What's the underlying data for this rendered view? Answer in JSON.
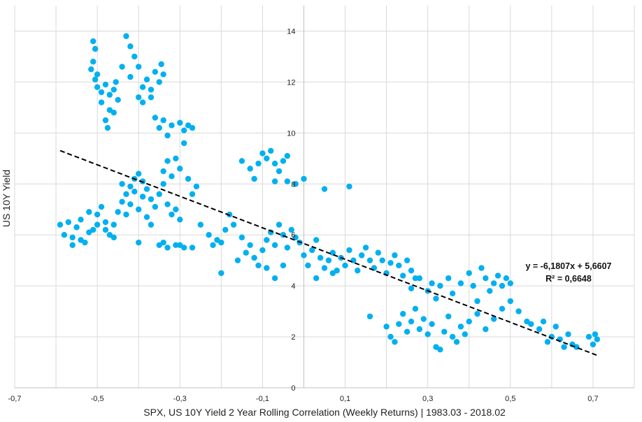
{
  "chart_data": {
    "type": "scatter",
    "title": "",
    "xlabel": "SPX, US 10Y Yield 2 Year Rolling Correlation (Weekly Returns) | 1983.03 - 2018.02",
    "ylabel": "US 10Y Yield",
    "xlim": [
      -0.7,
      0.8
    ],
    "ylim": [
      0,
      15
    ],
    "x_ticks": [
      -0.7,
      -0.5,
      -0.3,
      -0.1,
      0.1,
      0.3,
      0.5,
      0.7
    ],
    "x_tick_labels": [
      "-0,7",
      "-0,5",
      "-0,3",
      "-0,1",
      "0,1",
      "0,3",
      "0,5",
      "0,7"
    ],
    "y_ticks": [
      0,
      2,
      4,
      6,
      8,
      10,
      12,
      14
    ],
    "y_tick_labels": [
      "0",
      "2",
      "4",
      "6",
      "8",
      "10",
      "12",
      "14"
    ],
    "grid": true,
    "point_color": "#00b0f0",
    "trendline": {
      "slope": -6.1807,
      "intercept": 5.6607,
      "x_range": [
        -0.59,
        0.71
      ],
      "equation_label": "y = -6,1807x + 5,6607",
      "r2_label": "R² = 0,6648",
      "color": "#000000"
    },
    "points": [
      [
        -0.51,
        13.6
      ],
      [
        -0.505,
        13.3
      ],
      [
        -0.51,
        12.8
      ],
      [
        -0.515,
        12.5
      ],
      [
        -0.505,
        12.1
      ],
      [
        -0.5,
        11.8
      ],
      [
        -0.49,
        11.6
      ],
      [
        -0.48,
        11.9
      ],
      [
        -0.47,
        11.5
      ],
      [
        -0.46,
        11.7
      ],
      [
        -0.45,
        11.3
      ],
      [
        -0.47,
        10.9
      ],
      [
        -0.48,
        10.5
      ],
      [
        -0.475,
        10.2
      ],
      [
        -0.46,
        10.8
      ],
      [
        -0.5,
        12.3
      ],
      [
        -0.49,
        11.2
      ],
      [
        -0.455,
        12.0
      ],
      [
        -0.43,
        13.8
      ],
      [
        -0.42,
        13.4
      ],
      [
        -0.41,
        13.0
      ],
      [
        -0.44,
        12.6
      ],
      [
        -0.42,
        12.2
      ],
      [
        -0.4,
        11.4
      ],
      [
        -0.39,
        11.8
      ],
      [
        -0.38,
        12.1
      ],
      [
        -0.37,
        11.7
      ],
      [
        -0.36,
        12.4
      ],
      [
        -0.35,
        12.0
      ],
      [
        -0.345,
        12.7
      ],
      [
        -0.34,
        12.3
      ],
      [
        -0.39,
        11.2
      ],
      [
        -0.4,
        12.6
      ],
      [
        -0.37,
        11.4
      ],
      [
        -0.36,
        10.6
      ],
      [
        -0.35,
        10.2
      ],
      [
        -0.34,
        10.5
      ],
      [
        -0.33,
        9.9
      ],
      [
        -0.32,
        10.3
      ],
      [
        -0.3,
        10.4
      ],
      [
        -0.29,
        10.1
      ],
      [
        -0.28,
        10.3
      ],
      [
        -0.27,
        10.2
      ],
      [
        -0.29,
        9.6
      ],
      [
        -0.31,
        9.0
      ],
      [
        -0.3,
        8.6
      ],
      [
        -0.28,
        8.2
      ],
      [
        -0.26,
        7.9
      ],
      [
        -0.27,
        7.6
      ],
      [
        -0.33,
        8.9
      ],
      [
        -0.34,
        8.5
      ],
      [
        -0.32,
        8.3
      ],
      [
        -0.59,
        6.4
      ],
      [
        -0.58,
        6.0
      ],
      [
        -0.57,
        6.5
      ],
      [
        -0.56,
        5.9
      ],
      [
        -0.55,
        6.3
      ],
      [
        -0.54,
        6.6
      ],
      [
        -0.53,
        5.7
      ],
      [
        -0.52,
        6.9
      ],
      [
        -0.51,
        6.2
      ],
      [
        -0.5,
        6.8
      ],
      [
        -0.49,
        7.1
      ],
      [
        -0.48,
        6.5
      ],
      [
        -0.47,
        6.0
      ],
      [
        -0.46,
        6.4
      ],
      [
        -0.45,
        6.9
      ],
      [
        -0.44,
        7.3
      ],
      [
        -0.43,
        7.6
      ],
      [
        -0.42,
        7.9
      ],
      [
        -0.41,
        8.2
      ],
      [
        -0.4,
        8.4
      ],
      [
        -0.39,
        8.1
      ],
      [
        -0.38,
        7.8
      ],
      [
        -0.37,
        7.4
      ],
      [
        -0.36,
        7.1
      ],
      [
        -0.35,
        7.6
      ],
      [
        -0.34,
        8.0
      ],
      [
        -0.33,
        7.2
      ],
      [
        -0.32,
        6.8
      ],
      [
        -0.31,
        7.0
      ],
      [
        -0.3,
        6.6
      ],
      [
        -0.42,
        7.2
      ],
      [
        -0.4,
        7.0
      ],
      [
        -0.38,
        6.7
      ],
      [
        -0.44,
        8.0
      ],
      [
        -0.46,
        5.9
      ],
      [
        -0.48,
        6.2
      ],
      [
        -0.5,
        6.4
      ],
      [
        -0.52,
        6.1
      ],
      [
        -0.54,
        5.8
      ],
      [
        -0.56,
        5.6
      ],
      [
        -0.4,
        5.7
      ],
      [
        -0.37,
        6.4
      ],
      [
        -0.39,
        7.5
      ],
      [
        -0.41,
        7.7
      ],
      [
        -0.43,
        6.8
      ],
      [
        -0.35,
        5.6
      ],
      [
        -0.33,
        5.5
      ],
      [
        -0.31,
        5.6
      ],
      [
        -0.29,
        5.5
      ],
      [
        -0.27,
        5.5
      ],
      [
        -0.34,
        5.7
      ],
      [
        -0.3,
        5.6
      ],
      [
        -0.25,
        6.4
      ],
      [
        -0.23,
        6.0
      ],
      [
        -0.21,
        5.8
      ],
      [
        -0.2,
        5.7
      ],
      [
        -0.19,
        6.2
      ],
      [
        -0.18,
        6.8
      ],
      [
        -0.17,
        6.4
      ],
      [
        -0.15,
        5.9
      ],
      [
        -0.14,
        5.3
      ],
      [
        -0.13,
        5.6
      ],
      [
        -0.12,
        5.1
      ],
      [
        -0.11,
        4.8
      ],
      [
        -0.1,
        5.4
      ],
      [
        -0.09,
        5.8
      ],
      [
        -0.08,
        6.1
      ],
      [
        -0.07,
        5.6
      ],
      [
        -0.06,
        6.4
      ],
      [
        -0.05,
        6.0
      ],
      [
        -0.04,
        5.5
      ],
      [
        -0.03,
        6.2
      ],
      [
        -0.02,
        5.9
      ],
      [
        -0.01,
        5.7
      ],
      [
        -0.09,
        4.7
      ],
      [
        -0.07,
        4.3
      ],
      [
        -0.05,
        4.8
      ],
      [
        -0.2,
        4.5
      ],
      [
        -0.16,
        5.0
      ],
      [
        -0.22,
        5.6
      ],
      [
        -0.15,
        8.9
      ],
      [
        -0.13,
        8.6
      ],
      [
        -0.12,
        8.2
      ],
      [
        -0.11,
        8.8
      ],
      [
        -0.1,
        9.2
      ],
      [
        -0.09,
        9.0
      ],
      [
        -0.08,
        9.3
      ],
      [
        -0.07,
        8.8
      ],
      [
        -0.06,
        8.5
      ],
      [
        -0.05,
        8.9
      ],
      [
        -0.04,
        9.1
      ],
      [
        -0.07,
        8.1
      ],
      [
        -0.04,
        8.1
      ],
      [
        -0.02,
        8.0
      ],
      [
        0.0,
        8.2
      ],
      [
        0.05,
        7.8
      ],
      [
        0.11,
        7.9
      ],
      [
        0.0,
        5.2
      ],
      [
        0.01,
        4.8
      ],
      [
        0.02,
        5.4
      ],
      [
        0.03,
        5.8
      ],
      [
        0.04,
        5.1
      ],
      [
        0.05,
        4.7
      ],
      [
        0.06,
        5.0
      ],
      [
        0.07,
        5.3
      ],
      [
        0.08,
        4.6
      ],
      [
        0.09,
        5.1
      ],
      [
        0.1,
        4.8
      ],
      [
        0.11,
        5.4
      ],
      [
        0.12,
        5.0
      ],
      [
        0.13,
        4.6
      ],
      [
        0.14,
        5.2
      ],
      [
        0.15,
        5.5
      ],
      [
        0.16,
        5.0
      ],
      [
        0.17,
        4.7
      ],
      [
        0.18,
        5.3
      ],
      [
        0.19,
        5.0
      ],
      [
        0.2,
        4.5
      ],
      [
        0.21,
        4.9
      ],
      [
        0.22,
        5.2
      ],
      [
        0.23,
        4.8
      ],
      [
        0.24,
        4.4
      ],
      [
        0.25,
        5.0
      ],
      [
        0.26,
        4.6
      ],
      [
        0.27,
        4.3
      ],
      [
        0.03,
        4.3
      ],
      [
        0.07,
        4.5
      ],
      [
        0.16,
        2.8
      ],
      [
        0.2,
        2.4
      ],
      [
        0.21,
        2.0
      ],
      [
        0.22,
        1.8
      ],
      [
        0.23,
        2.5
      ],
      [
        0.24,
        2.9
      ],
      [
        0.25,
        2.2
      ],
      [
        0.26,
        2.6
      ],
      [
        0.27,
        3.1
      ],
      [
        0.28,
        2.3
      ],
      [
        0.29,
        2.7
      ],
      [
        0.3,
        2.1
      ],
      [
        0.31,
        2.5
      ],
      [
        0.32,
        1.6
      ],
      [
        0.33,
        1.5
      ],
      [
        0.34,
        2.2
      ],
      [
        0.35,
        2.8
      ],
      [
        0.36,
        2.0
      ],
      [
        0.37,
        1.8
      ],
      [
        0.38,
        2.4
      ],
      [
        0.39,
        2.1
      ],
      [
        0.4,
        2.6
      ],
      [
        0.42,
        2.9
      ],
      [
        0.44,
        2.3
      ],
      [
        0.46,
        2.7
      ],
      [
        0.48,
        3.1
      ],
      [
        0.5,
        3.4
      ],
      [
        0.52,
        3.0
      ],
      [
        0.54,
        2.6
      ],
      [
        0.26,
        3.9
      ],
      [
        0.28,
        4.3
      ],
      [
        0.3,
        3.8
      ],
      [
        0.31,
        4.1
      ],
      [
        0.32,
        3.5
      ],
      [
        0.33,
        4.0
      ],
      [
        0.35,
        4.3
      ],
      [
        0.36,
        3.7
      ],
      [
        0.38,
        4.1
      ],
      [
        0.4,
        4.5
      ],
      [
        0.41,
        4.0
      ],
      [
        0.42,
        3.4
      ],
      [
        0.43,
        4.7
      ],
      [
        0.44,
        4.3
      ],
      [
        0.45,
        3.8
      ],
      [
        0.46,
        4.1
      ],
      [
        0.47,
        4.4
      ],
      [
        0.48,
        4.0
      ],
      [
        0.49,
        4.3
      ],
      [
        0.5,
        4.1
      ],
      [
        0.55,
        2.5
      ],
      [
        0.57,
        2.3
      ],
      [
        0.58,
        2.6
      ],
      [
        0.59,
        1.8
      ],
      [
        0.6,
        2.0
      ],
      [
        0.61,
        2.4
      ],
      [
        0.62,
        1.9
      ],
      [
        0.63,
        1.6
      ],
      [
        0.64,
        2.1
      ],
      [
        0.65,
        1.7
      ],
      [
        0.66,
        1.6
      ],
      [
        0.69,
        2.0
      ],
      [
        0.7,
        1.7
      ],
      [
        0.71,
        1.9
      ],
      [
        0.705,
        2.1
      ]
    ]
  }
}
